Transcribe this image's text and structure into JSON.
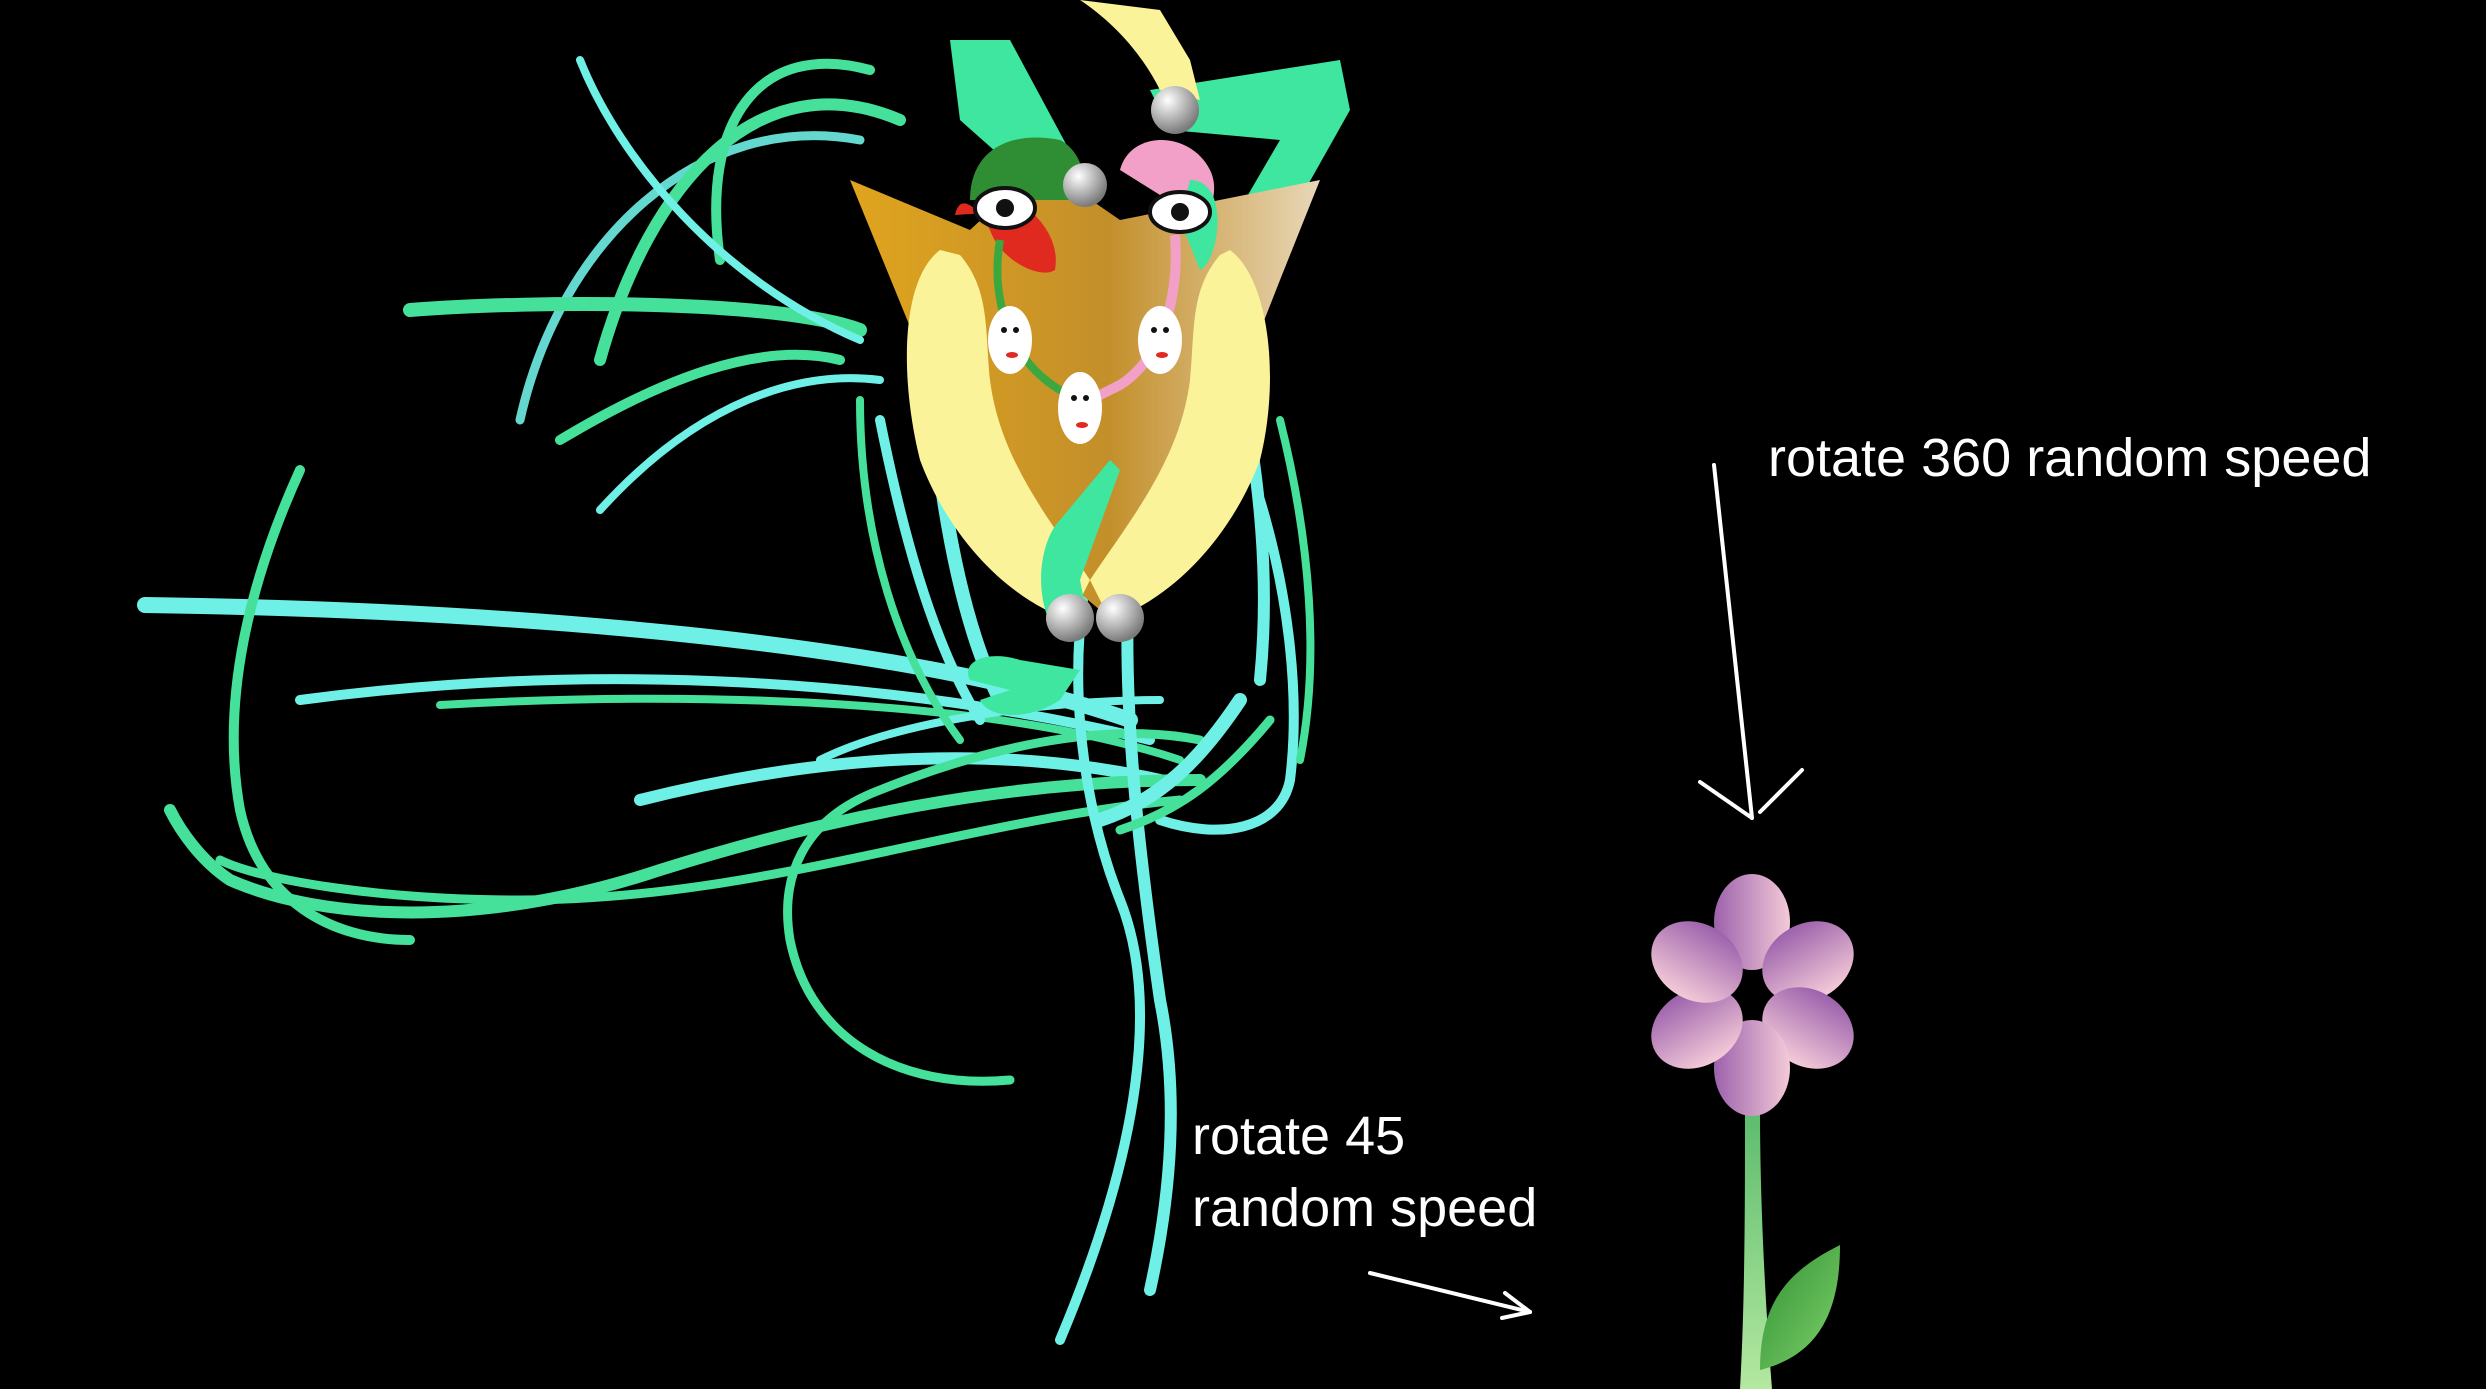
{
  "annotations": {
    "rotate_360": "rotate 360 random speed",
    "rotate_45_line1": "rotate 45",
    "rotate_45_line2": "random speed"
  },
  "colors": {
    "background": "#000000",
    "hair_cyan": "#6ff0e6",
    "hair_green": "#45e09a",
    "body_green": "#3fe6a0",
    "skin_yellow": "#fbf39a",
    "gold": "#d49b1c",
    "flower_petal_left": "#a168b2",
    "flower_petal_right": "#f2c3d4",
    "stem_green": "#7fd28a",
    "leaf_green": "#3aa83f",
    "text": "#ffffff"
  },
  "icons": [
    "figure-illustration",
    "flower-illustration",
    "arrow-down",
    "arrow-right"
  ]
}
